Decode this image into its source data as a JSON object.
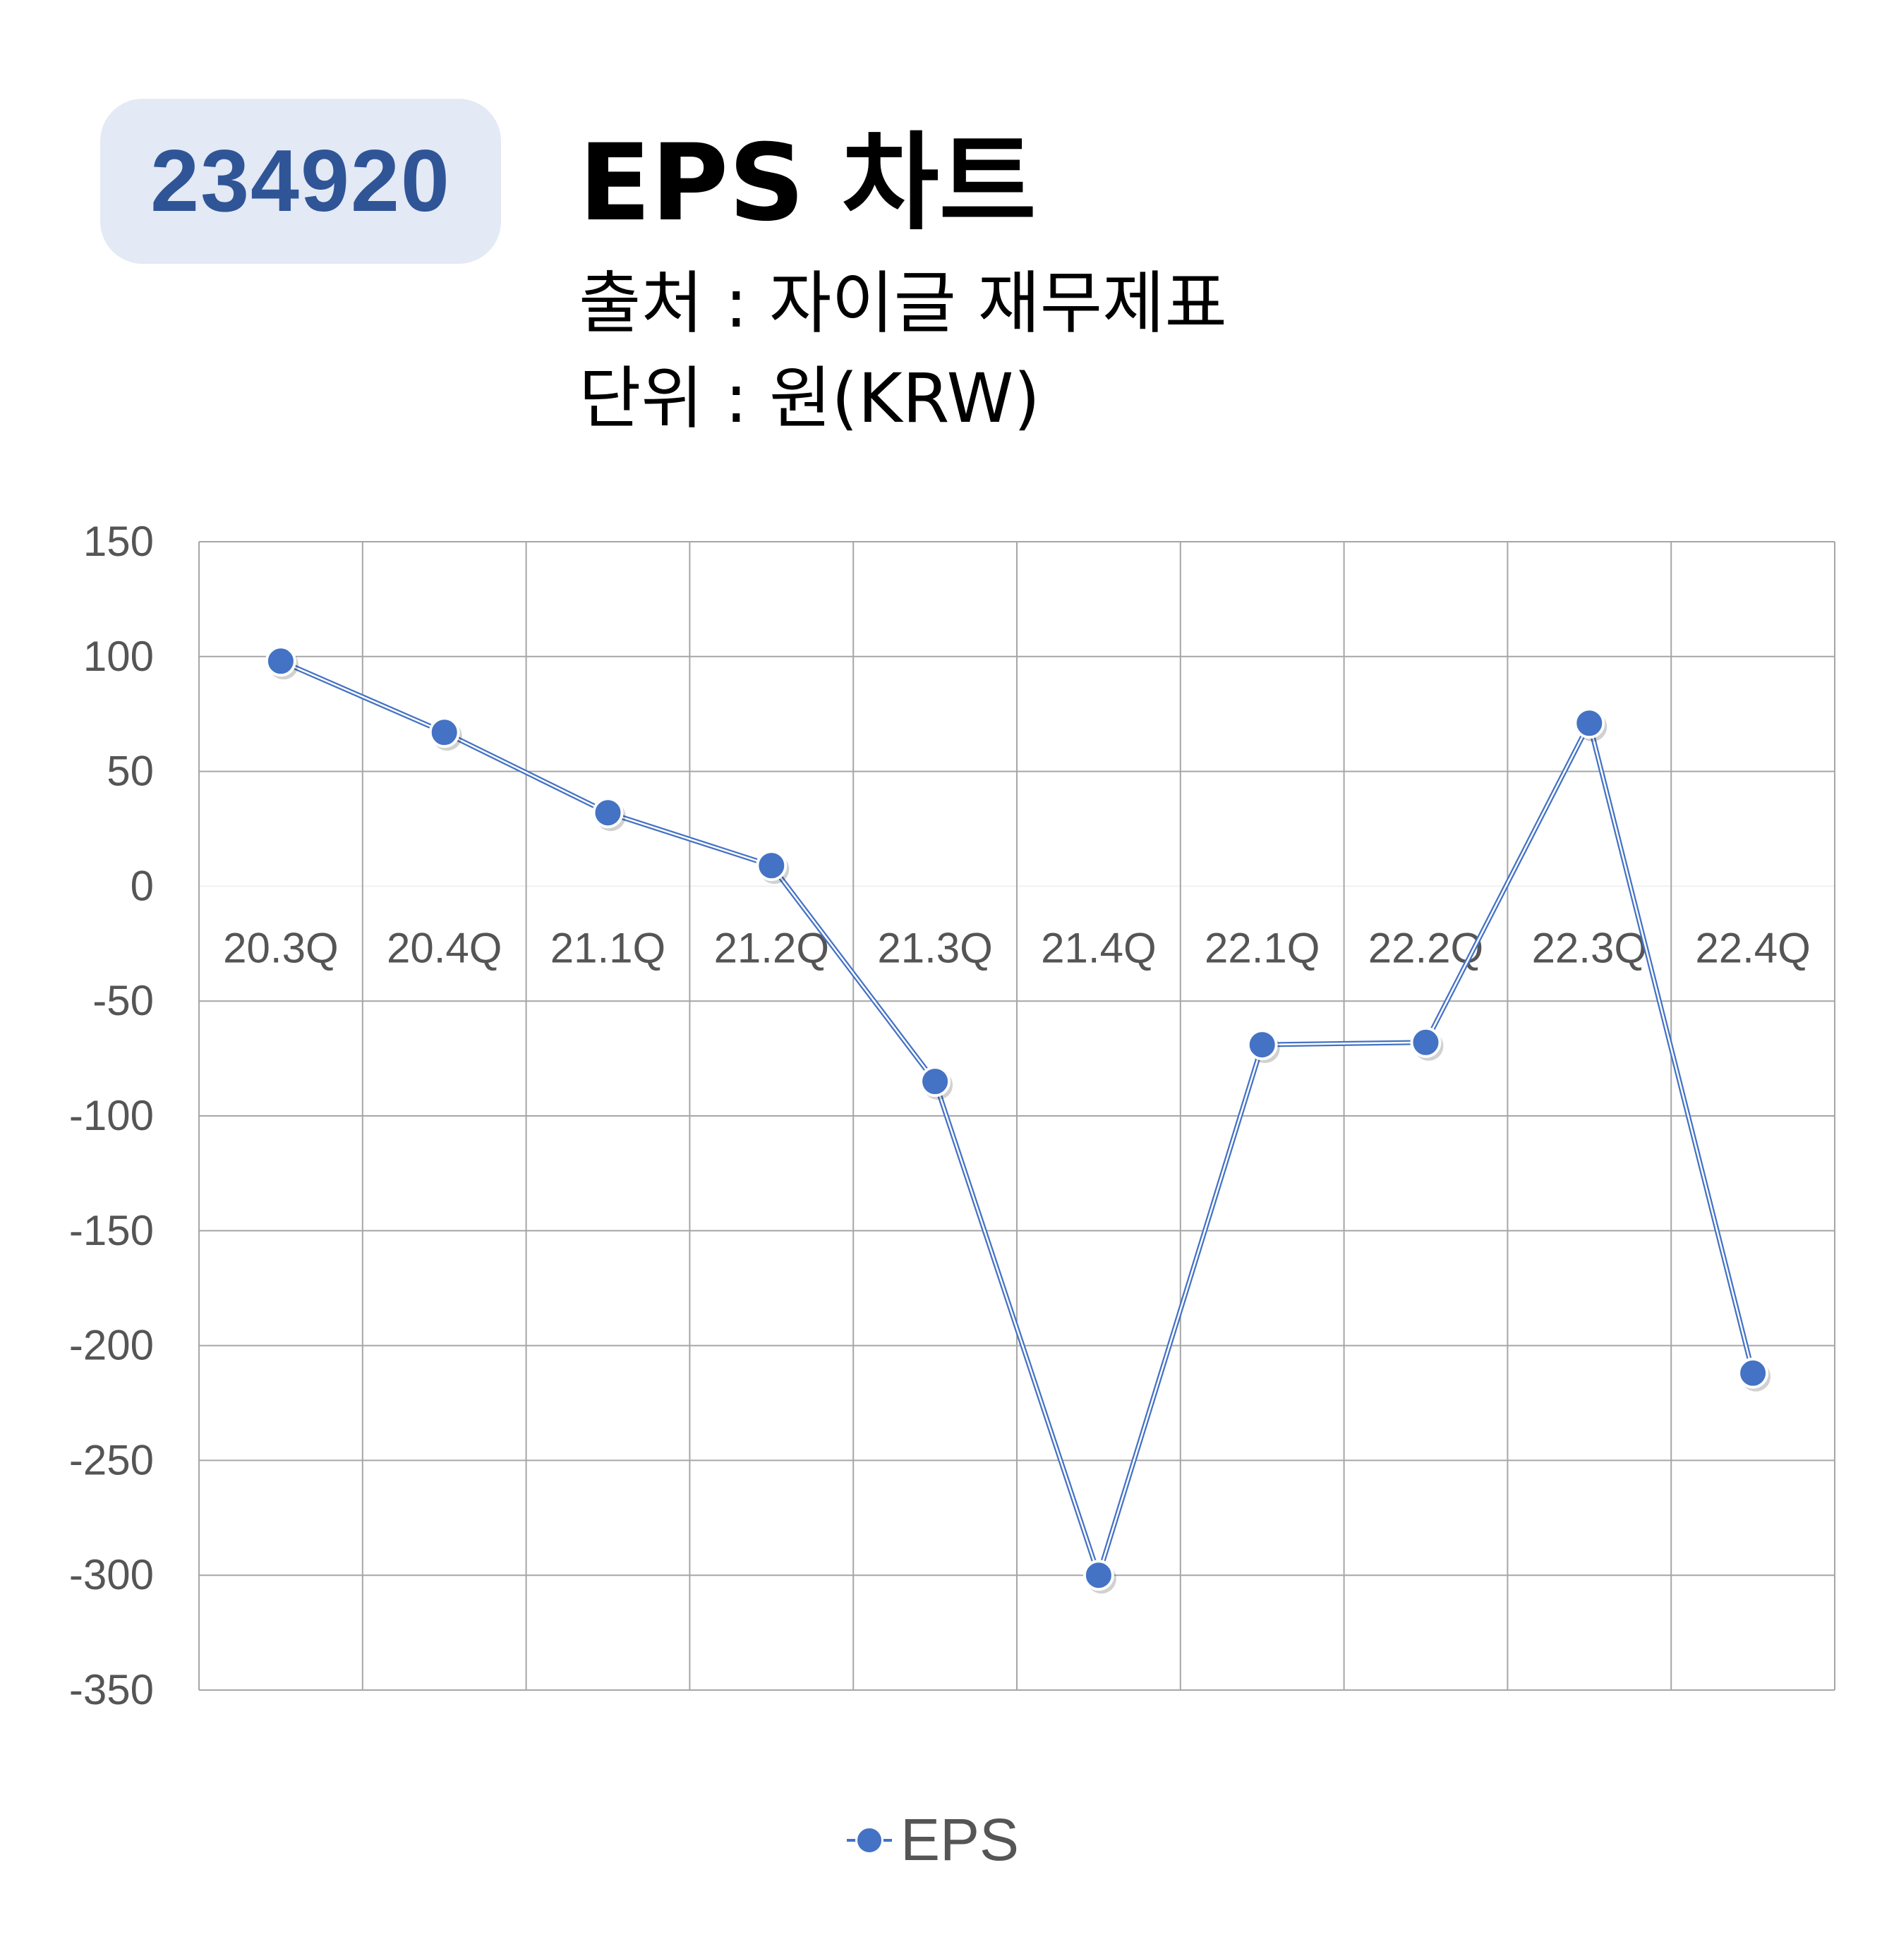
{
  "header": {
    "code": "234920",
    "title": "EPS 차트",
    "source": "출처 : 자이글 재무제표",
    "unit": "단위 : 원(KRW)"
  },
  "chart_data": {
    "type": "line",
    "categories": [
      "20.3Q",
      "20.4Q",
      "21.1Q",
      "21.2Q",
      "21.3Q",
      "21.4Q",
      "22.1Q",
      "22.2Q",
      "22.3Q",
      "22.4Q"
    ],
    "series": [
      {
        "name": "EPS",
        "values": [
          98,
          67,
          32,
          9,
          -85,
          -300,
          -69,
          -68,
          71,
          -212
        ],
        "color": "#4472c4"
      }
    ],
    "y_ticks": [
      150,
      100,
      50,
      0,
      -50,
      -100,
      -150,
      -200,
      -250,
      -300,
      -350
    ],
    "ylim": [
      -350,
      150
    ],
    "grid": true,
    "legend_position": "bottom-center"
  },
  "legend": {
    "label": "EPS"
  }
}
